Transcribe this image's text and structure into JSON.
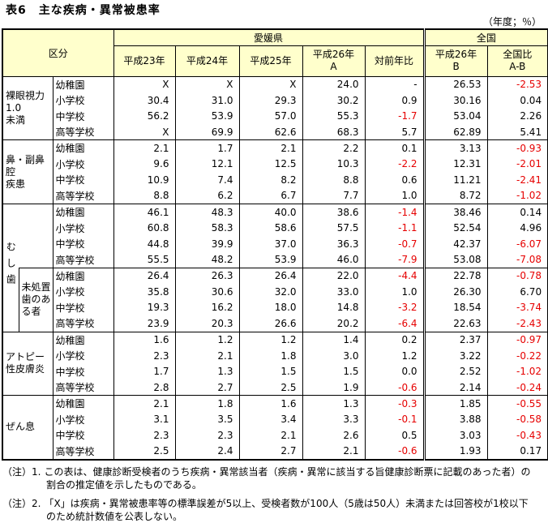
{
  "page": {
    "title": "表6　主な疾病・異常被患率",
    "unit_label": "（年度；％）"
  },
  "table": {
    "header": {
      "kubun": "区分",
      "region_ehime": "愛媛県",
      "region_national": "全国",
      "year_cols": [
        {
          "line1": "平成23年",
          "line2": ""
        },
        {
          "line1": "平成24年",
          "line2": ""
        },
        {
          "line1": "平成25年",
          "line2": ""
        },
        {
          "line1": "平成26年",
          "line2": "A"
        },
        {
          "line1": "対前年比",
          "line2": ""
        },
        {
          "line1": "平成26年",
          "line2": "B"
        },
        {
          "line1": "全国比",
          "line2": "A-B"
        }
      ]
    },
    "groups": [
      {
        "label_lines": [
          "裸眼視力",
          "1.0",
          "未満"
        ],
        "rows": [
          {
            "school": "幼稚園",
            "values": [
              "X",
              "X",
              "X",
              "24.0",
              "-",
              "26.53",
              "-2.53"
            ]
          },
          {
            "school": "小学校",
            "values": [
              "30.4",
              "31.0",
              "29.3",
              "30.2",
              "0.9",
              "30.16",
              "0.04"
            ]
          },
          {
            "school": "中学校",
            "values": [
              "56.2",
              "53.9",
              "57.0",
              "55.3",
              "-1.7",
              "53.04",
              "2.26"
            ]
          },
          {
            "school": "高等学校",
            "values": [
              "X",
              "69.9",
              "62.6",
              "68.3",
              "5.7",
              "62.89",
              "5.41"
            ]
          }
        ]
      },
      {
        "label_lines": [
          "鼻・副鼻腔",
          "疾患"
        ],
        "rows": [
          {
            "school": "幼稚園",
            "values": [
              "2.1",
              "1.7",
              "2.1",
              "2.2",
              "0.1",
              "3.13",
              "-0.93"
            ]
          },
          {
            "school": "小学校",
            "values": [
              "9.6",
              "12.1",
              "12.5",
              "10.3",
              "-2.2",
              "12.31",
              "-2.01"
            ]
          },
          {
            "school": "中学校",
            "values": [
              "10.9",
              "7.4",
              "8.2",
              "8.8",
              "0.6",
              "11.21",
              "-2.41"
            ]
          },
          {
            "school": "高等学校",
            "values": [
              "8.8",
              "6.2",
              "6.7",
              "7.7",
              "1.0",
              "8.72",
              "-1.02"
            ]
          }
        ]
      },
      {
        "label_lines": [
          "むし歯"
        ],
        "vertical": true,
        "rows": [
          {
            "school": "幼稚園",
            "values": [
              "46.1",
              "48.3",
              "40.0",
              "38.6",
              "-1.4",
              "38.46",
              "0.14"
            ]
          },
          {
            "school": "小学校",
            "values": [
              "60.8",
              "58.3",
              "58.6",
              "57.5",
              "-1.1",
              "52.54",
              "4.96"
            ]
          },
          {
            "school": "中学校",
            "values": [
              "44.8",
              "39.9",
              "37.0",
              "36.3",
              "-0.7",
              "42.37",
              "-6.07"
            ]
          },
          {
            "school": "高等学校",
            "values": [
              "55.5",
              "48.2",
              "53.9",
              "46.0",
              "-7.9",
              "53.08",
              "-7.08"
            ]
          }
        ],
        "subgroup": {
          "label": "未処置歯のある者",
          "rows": [
            {
              "school": "幼稚園",
              "values": [
                "26.4",
                "26.3",
                "26.4",
                "22.0",
                "-4.4",
                "22.78",
                "-0.78"
              ]
            },
            {
              "school": "小学校",
              "values": [
                "35.8",
                "30.6",
                "32.0",
                "33.0",
                "1.0",
                "26.30",
                "6.70"
              ]
            },
            {
              "school": "中学校",
              "values": [
                "19.3",
                "16.2",
                "18.0",
                "14.8",
                "-3.2",
                "18.54",
                "-3.74"
              ]
            },
            {
              "school": "高等学校",
              "values": [
                "23.9",
                "20.3",
                "26.6",
                "20.2",
                "-6.4",
                "22.63",
                "-2.43"
              ]
            }
          ]
        }
      },
      {
        "label_lines": [
          "アトピー",
          "性皮膚炎"
        ],
        "rows": [
          {
            "school": "幼稚園",
            "values": [
              "1.6",
              "1.2",
              "1.2",
              "1.4",
              "0.2",
              "2.37",
              "-0.97"
            ]
          },
          {
            "school": "小学校",
            "values": [
              "2.3",
              "2.1",
              "1.8",
              "3.0",
              "1.2",
              "3.22",
              "-0.22"
            ]
          },
          {
            "school": "中学校",
            "values": [
              "1.7",
              "1.3",
              "1.5",
              "1.5",
              "0.0",
              "2.52",
              "-1.02"
            ]
          },
          {
            "school": "高等学校",
            "values": [
              "2.8",
              "2.7",
              "2.5",
              "1.9",
              "-0.6",
              "2.14",
              "-0.24"
            ]
          }
        ]
      },
      {
        "label_lines": [
          "ぜん息"
        ],
        "rows": [
          {
            "school": "幼稚園",
            "values": [
              "2.1",
              "1.8",
              "1.6",
              "1.3",
              "-0.3",
              "1.85",
              "-0.55"
            ]
          },
          {
            "school": "小学校",
            "values": [
              "3.1",
              "3.5",
              "3.4",
              "3.3",
              "-0.1",
              "3.88",
              "-0.58"
            ]
          },
          {
            "school": "中学校",
            "values": [
              "2.3",
              "2.3",
              "2.1",
              "2.6",
              "0.5",
              "3.03",
              "-0.43"
            ]
          },
          {
            "school": "高等学校",
            "values": [
              "2.5",
              "2.4",
              "2.7",
              "2.1",
              "-0.6",
              "1.93",
              "0.17"
            ]
          }
        ]
      }
    ]
  },
  "notes": [
    {
      "prefix": "（注）1.",
      "line1": "この表は、健康診断受検者のうち疾病・異常該当者（疾病・異常に該当する旨健康診断票に記載のあった者）の",
      "line2": "割合の推定値を示したものである。"
    },
    {
      "prefix": "（注）2.",
      "line1": "「X」は疾病・異常被患率等の標準誤差が5以上、受検者数が100人（5歳は50人）未満または回答校が1校以下",
      "line2": "のため統計数値を公表しない。"
    }
  ],
  "colors": {
    "header_bg": "#ffffcc",
    "negative": "#e60000",
    "border": "#000000"
  }
}
